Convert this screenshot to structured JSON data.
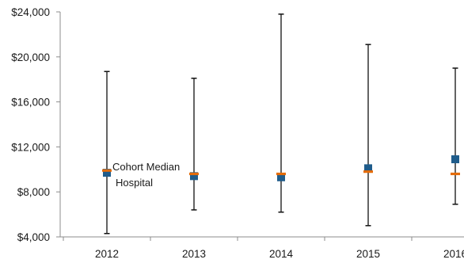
{
  "chart_data": {
    "type": "scatter",
    "title": "",
    "xlabel": "",
    "ylabel": "",
    "categories": [
      "2012",
      "2013",
      "2014",
      "2015",
      "2016"
    ],
    "ylim": [
      4000,
      24000
    ],
    "y_ticks": [
      4000,
      8000,
      12000,
      16000,
      20000,
      24000
    ],
    "y_tick_labels": [
      "$4,000",
      "$8,000",
      "$12,000",
      "$16,000",
      "$20,000",
      "$24,000"
    ],
    "grid": false,
    "legend": "none",
    "ranges": [
      {
        "category": "2012",
        "low": 4300,
        "high": 18700
      },
      {
        "category": "2013",
        "low": 6400,
        "high": 18100
      },
      {
        "category": "2014",
        "low": 6200,
        "high": 23800
      },
      {
        "category": "2015",
        "low": 5000,
        "high": 21100
      },
      {
        "category": "2016",
        "low": 6900,
        "high": 19000
      }
    ],
    "series": [
      {
        "marker": "square",
        "color": "#1f5c8b",
        "values": [
          9700,
          9400,
          9300,
          10100,
          10900
        ]
      },
      {
        "marker": "dash",
        "color": "#e46c0a",
        "values": [
          9900,
          9600,
          9600,
          9800,
          9600
        ]
      }
    ],
    "annotations": [
      {
        "lines": [
          "Cohort Median",
          "Hospital"
        ],
        "category": "2012"
      }
    ]
  }
}
